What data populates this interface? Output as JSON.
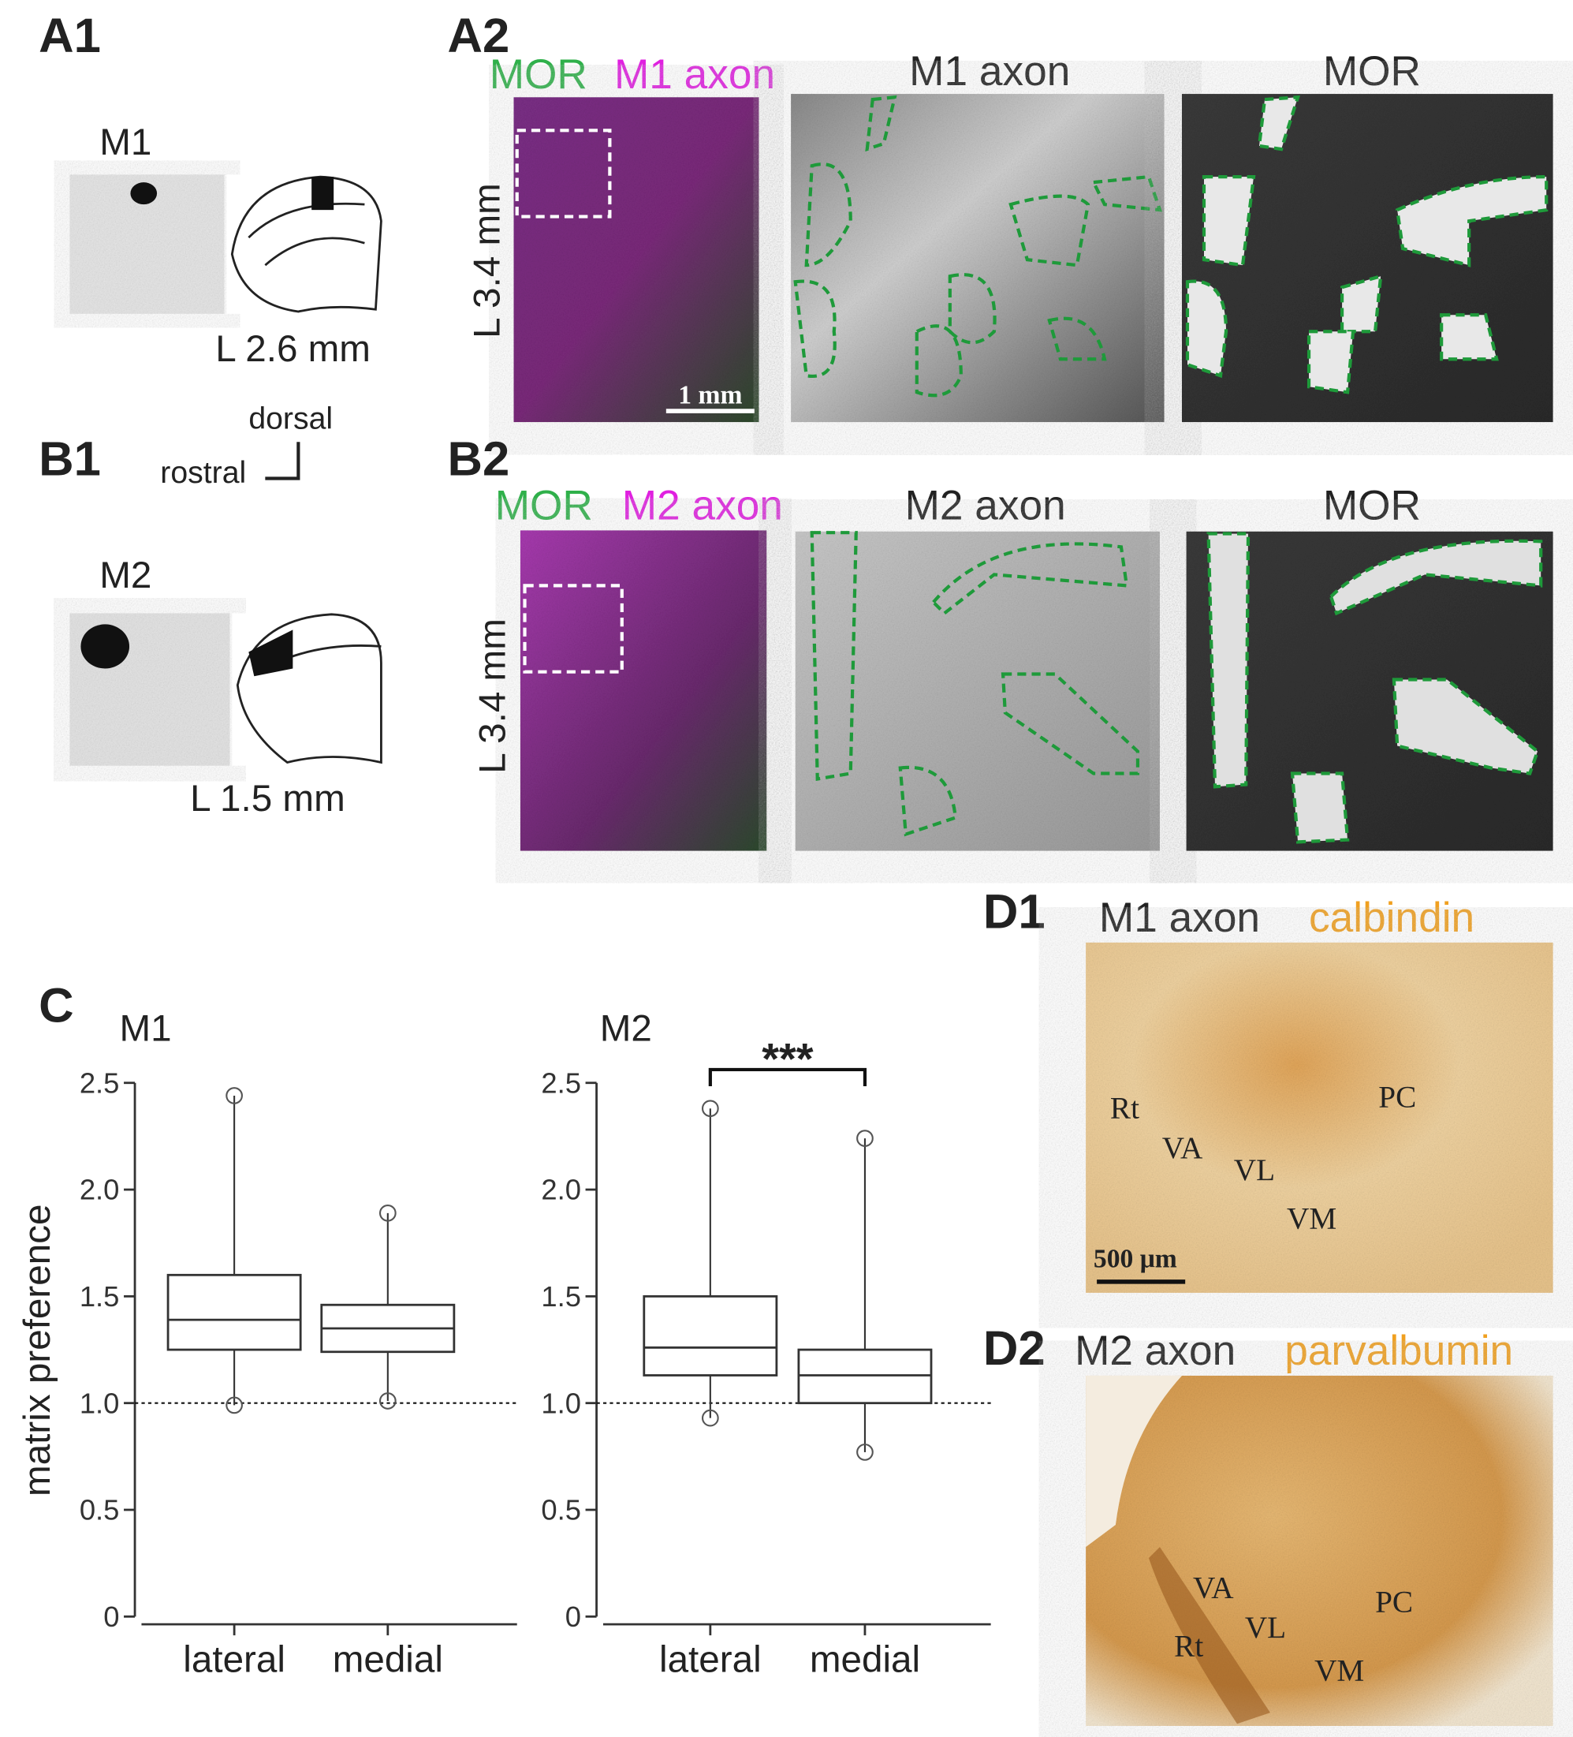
{
  "figure": {
    "A1": {
      "label": "A1",
      "region": "M1",
      "level": "L 2.6 mm"
    },
    "orientation": {
      "dorsal": "dorsal",
      "rostral": "rostral"
    },
    "B1": {
      "label": "B1",
      "region": "M2",
      "level": "L 1.5 mm"
    },
    "A2": {
      "label": "A2",
      "stain": "MOR",
      "axon": "M1 axon",
      "level": "L 3.4 mm",
      "scale": "1 mm",
      "panels": [
        "M1 axon",
        "MOR"
      ]
    },
    "B2": {
      "label": "B2",
      "stain": "MOR",
      "axon": "M2 axon",
      "level": "L 3.4 mm",
      "panels": [
        "M2 axon",
        "MOR"
      ]
    },
    "C": {
      "label": "C"
    },
    "D1": {
      "label": "D1",
      "axon": "M1 axon",
      "stain": "calbindin",
      "regions": [
        "Rt",
        "VA",
        "VL",
        "VM",
        "PC"
      ],
      "scale": "500 μm"
    },
    "D2": {
      "label": "D2",
      "axon": "M2 axon",
      "stain": "parvalbumin",
      "regions": [
        "VA",
        "VL",
        "Rt",
        "VM",
        "PC"
      ]
    }
  },
  "chart_data": [
    {
      "type": "box",
      "title": "M1",
      "ylabel": "matrix preference",
      "categories": [
        "lateral",
        "medial"
      ],
      "boxes": [
        {
          "min": 0.99,
          "q1": 1.25,
          "median": 1.39,
          "q3": 1.6,
          "max": 2.44
        },
        {
          "min": 1.01,
          "q1": 1.24,
          "median": 1.35,
          "q3": 1.46,
          "max": 1.89
        }
      ],
      "ylim": [
        0,
        2.5
      ],
      "yticks": [
        0,
        0.5,
        {
          "value": 1,
          "label": "1.0"
        },
        1.5,
        {
          "value": 2,
          "label": "2.0"
        },
        2.5
      ],
      "reference_line": 1,
      "color": "#333333"
    },
    {
      "type": "box",
      "title": "M2",
      "categories": [
        "lateral",
        "medial"
      ],
      "boxes": [
        {
          "min": 0.93,
          "q1": 1.13,
          "median": 1.26,
          "q3": 1.5,
          "max": 2.38
        },
        {
          "min": 0.77,
          "q1": 1.0,
          "median": 1.13,
          "q3": 1.25,
          "max": 2.24
        }
      ],
      "ylim": [
        0,
        2.5
      ],
      "yticks": [
        0,
        0.5,
        {
          "value": 1,
          "label": "1.0"
        },
        1.5,
        {
          "value": 2,
          "label": "2.0"
        },
        2.5
      ],
      "reference_line": 1,
      "significance": "***",
      "color": "#333333"
    }
  ]
}
